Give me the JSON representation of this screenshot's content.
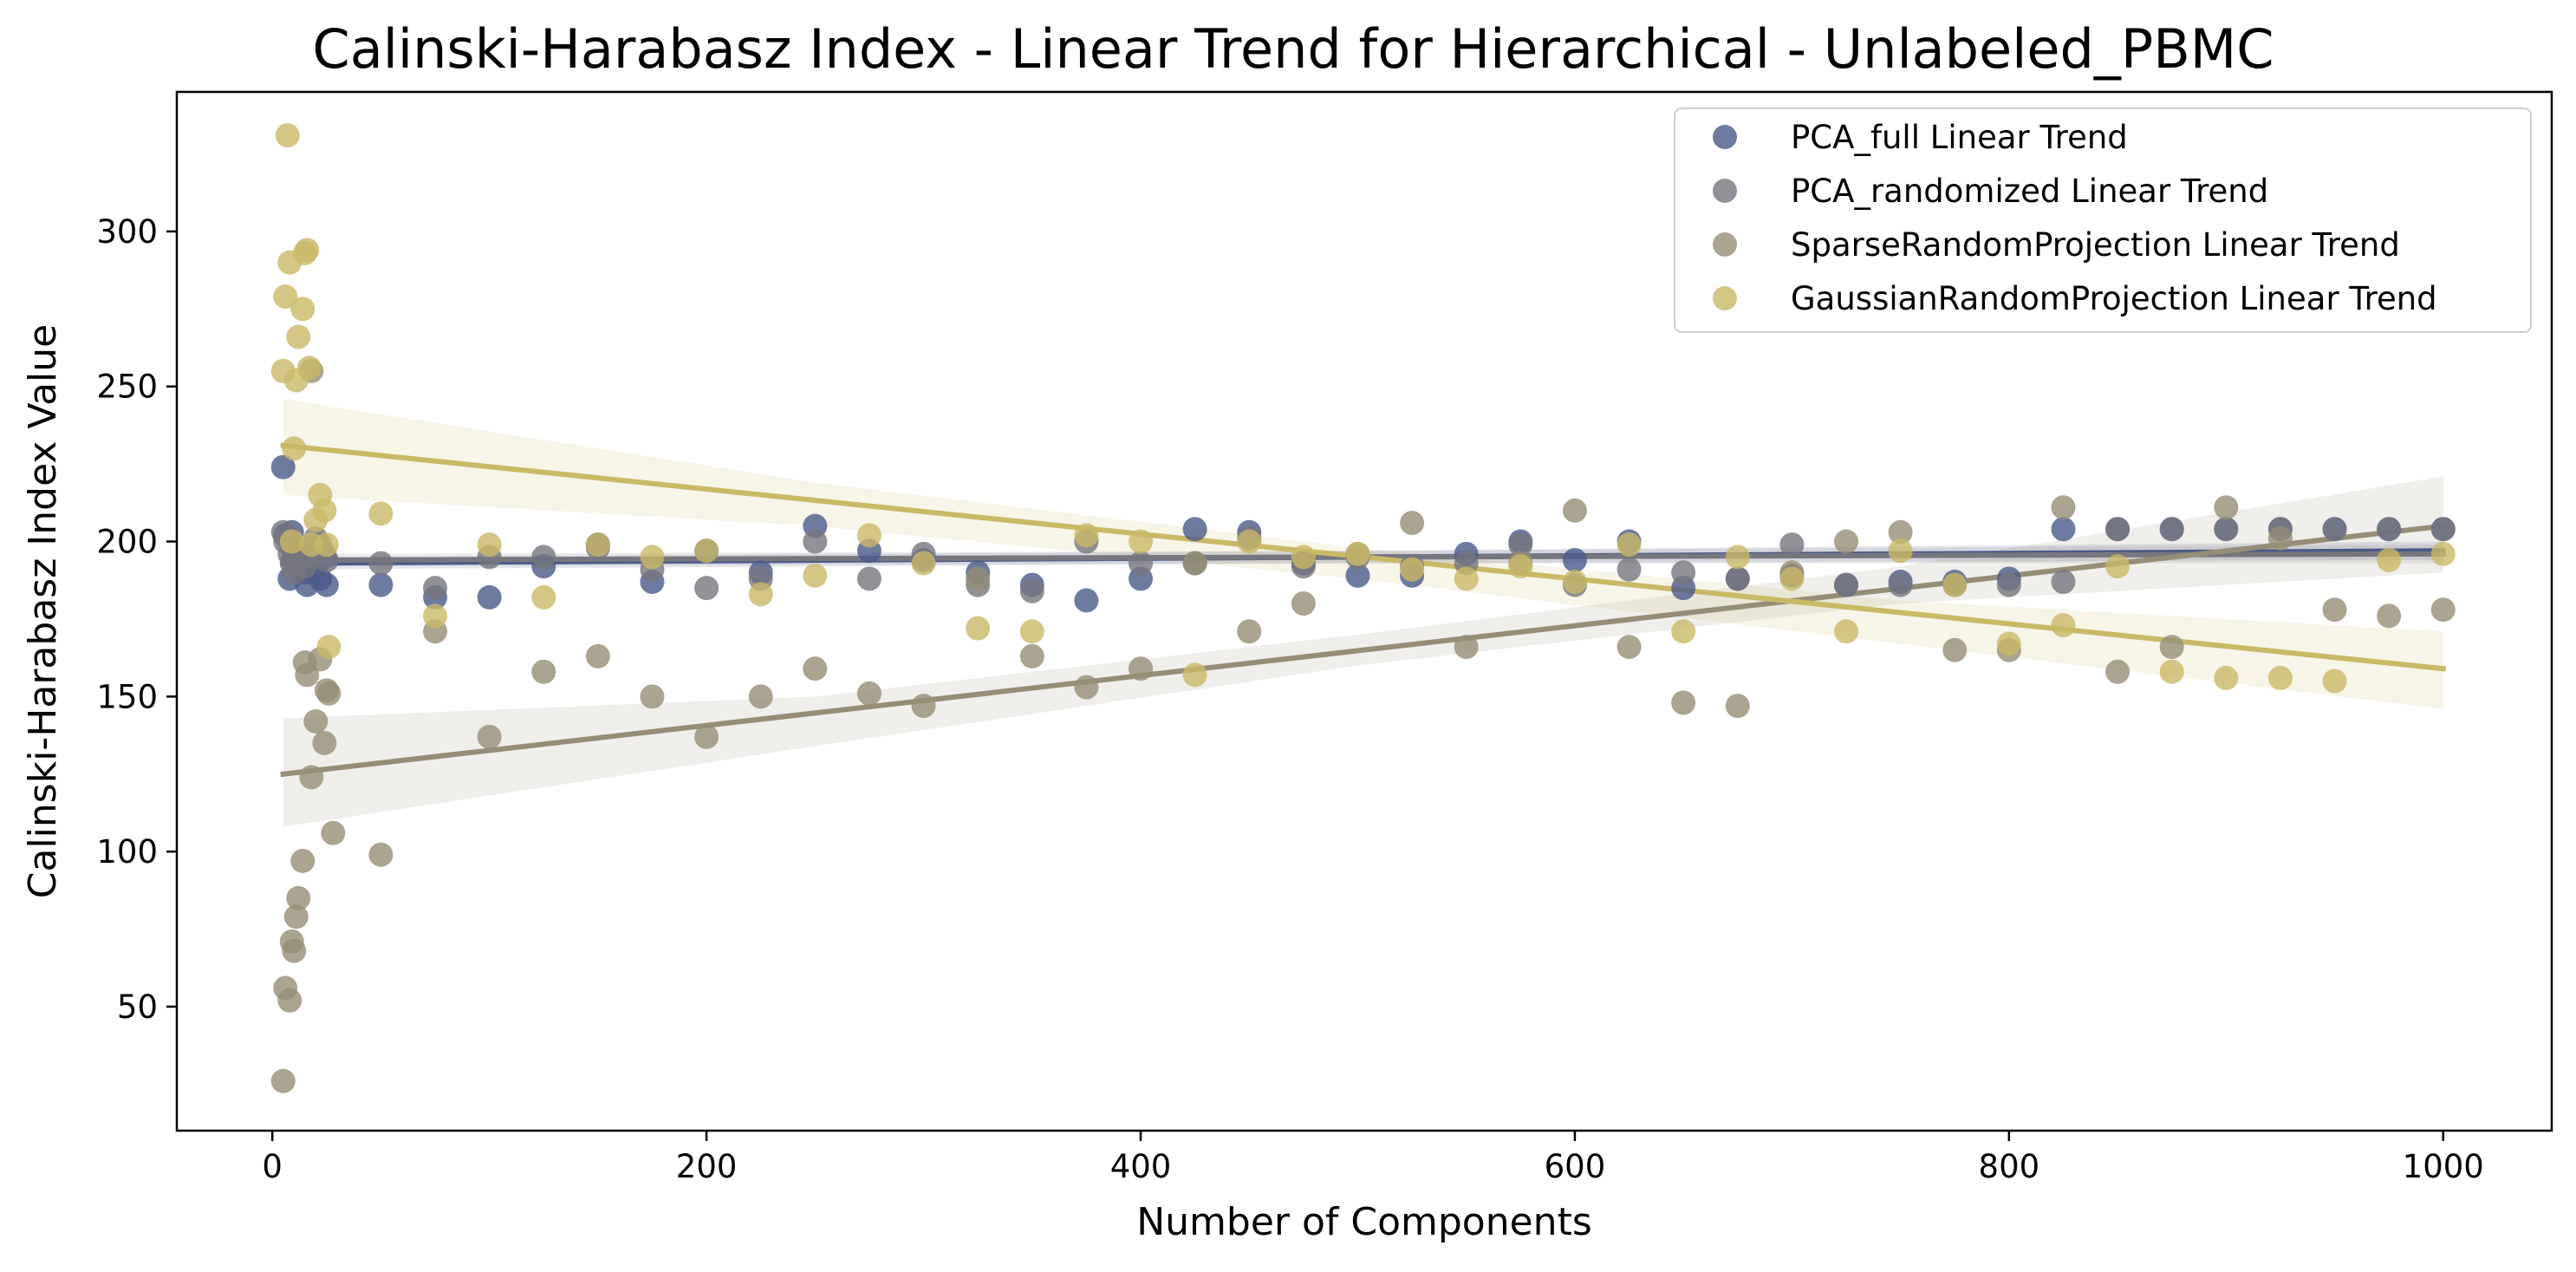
{
  "chart_data": {
    "type": "scatter",
    "title": "Calinski-Harabasz Index - Linear Trend for Hierarchical - Unlabeled_PBMC",
    "xlabel": "Number of Components",
    "ylabel": "Calinski-Harabasz Index Value",
    "xlim": [
      -44,
      1050
    ],
    "ylim": [
      10,
      345
    ],
    "xticks": [
      0,
      200,
      400,
      600,
      800,
      1000
    ],
    "yticks": [
      50,
      100,
      150,
      200,
      250,
      300
    ],
    "legend_position": "top-right",
    "grid": false,
    "series": [
      {
        "name": "PCA_full Linear Trend",
        "color": "#4a5a8a",
        "points": [
          [
            5,
            224
          ],
          [
            6,
            202
          ],
          [
            8,
            188
          ],
          [
            9,
            203
          ],
          [
            10,
            195
          ],
          [
            12,
            193
          ],
          [
            14,
            197
          ],
          [
            15,
            190
          ],
          [
            16,
            186
          ],
          [
            18,
            196
          ],
          [
            20,
            192
          ],
          [
            22,
            188
          ],
          [
            24,
            195
          ],
          [
            25,
            186
          ],
          [
            50,
            186
          ],
          [
            75,
            182
          ],
          [
            100,
            182
          ],
          [
            125,
            192
          ],
          [
            150,
            199
          ],
          [
            175,
            187
          ],
          [
            200,
            197
          ],
          [
            225,
            190
          ],
          [
            250,
            205
          ],
          [
            275,
            197
          ],
          [
            300,
            194
          ],
          [
            325,
            190
          ],
          [
            350,
            186
          ],
          [
            375,
            181
          ],
          [
            400,
            188
          ],
          [
            425,
            204
          ],
          [
            450,
            203
          ],
          [
            475,
            193
          ],
          [
            500,
            189
          ],
          [
            525,
            189
          ],
          [
            550,
            196
          ],
          [
            575,
            200
          ],
          [
            600,
            194
          ],
          [
            625,
            200
          ],
          [
            650,
            185
          ],
          [
            675,
            188
          ],
          [
            700,
            189
          ],
          [
            725,
            186
          ],
          [
            750,
            187
          ],
          [
            775,
            187
          ],
          [
            800,
            188
          ],
          [
            825,
            204
          ],
          [
            850,
            204
          ],
          [
            875,
            204
          ],
          [
            900,
            204
          ],
          [
            925,
            204
          ],
          [
            950,
            204
          ],
          [
            975,
            204
          ],
          [
            1000,
            204
          ]
        ],
        "trend": [
          [
            5,
            193
          ],
          [
            1000,
            197
          ]
        ],
        "ci": [
          [
            5,
            191,
            195
          ],
          [
            500,
            193,
            197
          ],
          [
            1000,
            194,
            200
          ]
        ]
      },
      {
        "name": "PCA_randomized Linear Trend",
        "color": "#76767e",
        "points": [
          [
            5,
            203
          ],
          [
            6,
            200
          ],
          [
            8,
            196
          ],
          [
            9,
            193
          ],
          [
            10,
            190
          ],
          [
            12,
            197
          ],
          [
            14,
            195
          ],
          [
            15,
            192
          ],
          [
            16,
            196
          ],
          [
            18,
            198
          ],
          [
            20,
            201
          ],
          [
            22,
            199
          ],
          [
            24,
            196
          ],
          [
            25,
            194
          ],
          [
            50,
            193
          ],
          [
            75,
            185
          ],
          [
            100,
            195
          ],
          [
            125,
            195
          ],
          [
            150,
            198
          ],
          [
            175,
            191
          ],
          [
            200,
            185
          ],
          [
            225,
            188
          ],
          [
            250,
            200
          ],
          [
            275,
            188
          ],
          [
            300,
            196
          ],
          [
            325,
            186
          ],
          [
            350,
            184
          ],
          [
            375,
            200
          ],
          [
            400,
            193
          ],
          [
            425,
            193
          ],
          [
            450,
            201
          ],
          [
            475,
            192
          ],
          [
            500,
            195
          ],
          [
            525,
            192
          ],
          [
            550,
            193
          ],
          [
            575,
            199
          ],
          [
            600,
            186
          ],
          [
            625,
            191
          ],
          [
            650,
            190
          ],
          [
            675,
            188
          ],
          [
            700,
            199
          ],
          [
            725,
            186
          ],
          [
            750,
            186
          ],
          [
            775,
            186
          ],
          [
            800,
            186
          ],
          [
            825,
            187
          ],
          [
            850,
            204
          ],
          [
            875,
            204
          ],
          [
            900,
            204
          ],
          [
            925,
            204
          ],
          [
            950,
            204
          ],
          [
            975,
            204
          ],
          [
            1000,
            204
          ]
        ],
        "trend": [
          [
            5,
            194
          ],
          [
            1000,
            196
          ]
        ],
        "ci": [
          [
            5,
            192,
            196
          ],
          [
            500,
            193,
            197
          ],
          [
            1000,
            193,
            199
          ]
        ]
      },
      {
        "name": "SparseRandomProjection Linear Trend",
        "color": "#958d76",
        "points": [
          [
            5,
            26
          ],
          [
            6,
            56
          ],
          [
            8,
            52
          ],
          [
            9,
            71
          ],
          [
            10,
            68
          ],
          [
            11,
            79
          ],
          [
            12,
            85
          ],
          [
            14,
            97
          ],
          [
            15,
            161
          ],
          [
            16,
            157
          ],
          [
            18,
            124
          ],
          [
            20,
            142
          ],
          [
            22,
            162
          ],
          [
            24,
            135
          ],
          [
            25,
            152
          ],
          [
            26,
            151
          ],
          [
            28,
            106
          ],
          [
            50,
            99
          ],
          [
            75,
            171
          ],
          [
            100,
            137
          ],
          [
            125,
            158
          ],
          [
            150,
            163
          ],
          [
            175,
            150
          ],
          [
            200,
            137
          ],
          [
            225,
            150
          ],
          [
            250,
            159
          ],
          [
            275,
            151
          ],
          [
            300,
            147
          ],
          [
            325,
            188
          ],
          [
            350,
            163
          ],
          [
            375,
            153
          ],
          [
            400,
            159
          ],
          [
            425,
            193
          ],
          [
            450,
            171
          ],
          [
            475,
            180
          ],
          [
            500,
            196
          ],
          [
            525,
            206
          ],
          [
            550,
            166
          ],
          [
            575,
            193
          ],
          [
            600,
            210
          ],
          [
            625,
            166
          ],
          [
            650,
            148
          ],
          [
            675,
            147
          ],
          [
            700,
            190
          ],
          [
            725,
            200
          ],
          [
            750,
            203
          ],
          [
            775,
            165
          ],
          [
            800,
            165
          ],
          [
            825,
            211
          ],
          [
            850,
            158
          ],
          [
            875,
            166
          ],
          [
            900,
            211
          ],
          [
            925,
            201
          ],
          [
            950,
            178
          ],
          [
            975,
            176
          ],
          [
            1000,
            178
          ],
          [
            18,
            255
          ]
        ],
        "trend": [
          [
            5,
            125
          ],
          [
            1000,
            205
          ]
        ],
        "ci": [
          [
            5,
            108,
            143
          ],
          [
            250,
            134,
            150
          ],
          [
            500,
            160,
            170
          ],
          [
            750,
            180,
            192
          ],
          [
            1000,
            190,
            221
          ]
        ]
      },
      {
        "name": "GaussianRandomProjection Linear Trend",
        "color": "#c9b866",
        "points": [
          [
            5,
            255
          ],
          [
            6,
            279
          ],
          [
            7,
            331
          ],
          [
            8,
            290
          ],
          [
            9,
            200
          ],
          [
            10,
            230
          ],
          [
            11,
            252
          ],
          [
            12,
            266
          ],
          [
            14,
            275
          ],
          [
            15,
            293
          ],
          [
            16,
            294
          ],
          [
            17,
            256
          ],
          [
            18,
            199
          ],
          [
            20,
            207
          ],
          [
            22,
            215
          ],
          [
            24,
            210
          ],
          [
            25,
            199
          ],
          [
            26,
            166
          ],
          [
            50,
            209
          ],
          [
            75,
            176
          ],
          [
            100,
            199
          ],
          [
            125,
            182
          ],
          [
            150,
            199
          ],
          [
            175,
            195
          ],
          [
            200,
            197
          ],
          [
            225,
            183
          ],
          [
            250,
            189
          ],
          [
            275,
            202
          ],
          [
            300,
            193
          ],
          [
            325,
            172
          ],
          [
            350,
            171
          ],
          [
            375,
            202
          ],
          [
            400,
            200
          ],
          [
            425,
            157
          ],
          [
            450,
            200
          ],
          [
            475,
            195
          ],
          [
            500,
            196
          ],
          [
            525,
            191
          ],
          [
            550,
            188
          ],
          [
            575,
            192
          ],
          [
            600,
            187
          ],
          [
            625,
            199
          ],
          [
            650,
            171
          ],
          [
            675,
            195
          ],
          [
            700,
            188
          ],
          [
            725,
            171
          ],
          [
            750,
            197
          ],
          [
            775,
            186
          ],
          [
            800,
            167
          ],
          [
            825,
            173
          ],
          [
            850,
            192
          ],
          [
            875,
            158
          ],
          [
            900,
            156
          ],
          [
            925,
            156
          ],
          [
            950,
            155
          ],
          [
            975,
            194
          ],
          [
            1000,
            196
          ]
        ],
        "trend": [
          [
            5,
            231
          ],
          [
            1000,
            159
          ]
        ],
        "ci": [
          [
            5,
            215,
            246
          ],
          [
            250,
            205,
            219
          ],
          [
            500,
            188,
            198
          ],
          [
            750,
            167,
            181
          ],
          [
            1000,
            146,
            171
          ]
        ]
      }
    ]
  }
}
